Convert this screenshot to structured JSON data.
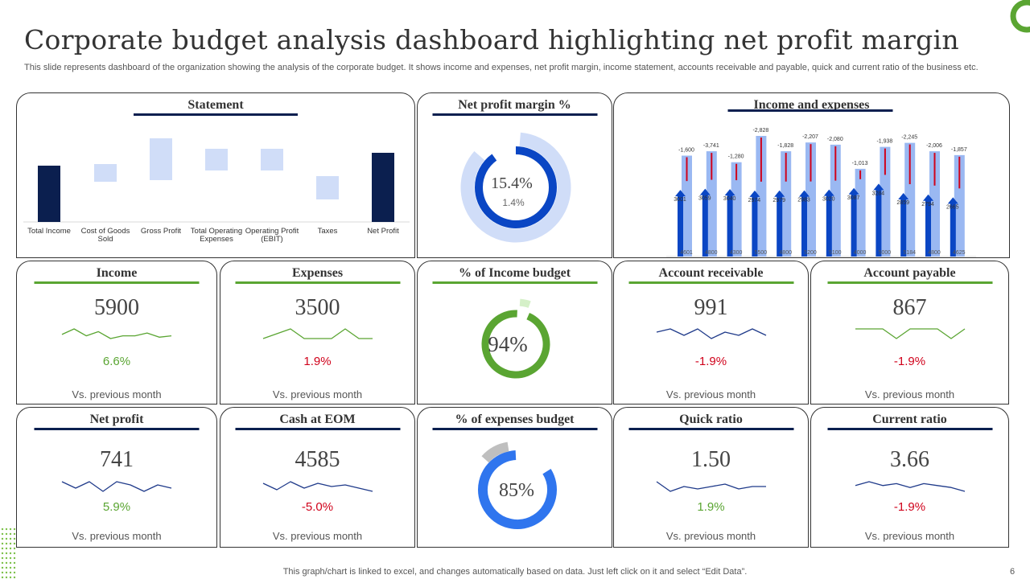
{
  "title": "Corporate budget analysis dashboard highlighting net profit margin",
  "subtitle": "This slide represents dashboard of the organization showing the analysis of the corporate budget. It shows income and expenses, net profit margin, income statement, accounts receivable and payable, quick and current ratio of the business etc.",
  "colors": {
    "navy": "#0b1f4f",
    "green": "#5aa532",
    "light_blue": "#d0ddf8",
    "blue": "#0a46c4",
    "red": "#d0021b",
    "gray": "#bfbfbf"
  },
  "statement": {
    "title": "Statement",
    "chart_data": {
      "type": "bar",
      "categories": [
        "Total Income",
        "Cost of Goods Sold",
        "Gross Profit",
        "Total Operating Expenses",
        "Operating Profit (EBIT)",
        "Taxes",
        "Net Profit"
      ],
      "ranges": [
        [
          0,
          70
        ],
        [
          50,
          72
        ],
        [
          52,
          104
        ],
        [
          64,
          91
        ],
        [
          64,
          91
        ],
        [
          28,
          57
        ],
        [
          0,
          86
        ]
      ],
      "kinds": [
        "total",
        "step",
        "step",
        "step",
        "step",
        "step",
        "total"
      ]
    }
  },
  "net_profit_margin": {
    "title": "Net profit margin %",
    "value": "15.4%",
    "sub_value": "1.4%",
    "outer_fraction": 0.85,
    "inner_fraction": 0.9
  },
  "income_expenses": {
    "title": "Income and expenses",
    "chart_data": {
      "type": "bar",
      "totals": [
        4601,
        4800,
        4300,
        5500,
        4800,
        5200,
        5100,
        4000,
        5000,
        5184,
        4800,
        4625
      ],
      "income": [
        3001,
        3059,
        3040,
        2974,
        2979,
        2983,
        3020,
        3087,
        3284,
        2859,
        2794,
        2665
      ],
      "expenses": [
        "-1,600",
        "-3,741",
        "-1,280",
        "-2,828",
        "-1,828",
        "-2,207",
        "-2,080",
        "-1,013",
        "-1,938",
        "-2,245",
        "-2,006",
        "-1,857"
      ]
    }
  },
  "income": {
    "title": "Income",
    "value": "5900",
    "pct": "6.6%",
    "trend": "up",
    "vs": "Vs. previous  month",
    "spark": [
      5,
      9,
      4,
      7,
      2,
      4,
      4,
      6,
      3,
      4
    ],
    "spark_color": "#5aa532"
  },
  "expenses": {
    "title": "Expenses",
    "value": "3500",
    "pct": "1.9%",
    "trend": "down",
    "vs": "Vs. previous  month",
    "spark": [
      4,
      5,
      6,
      4,
      4,
      4,
      6,
      4,
      4
    ],
    "spark_color": "#5aa532"
  },
  "income_budget": {
    "title": "% of Income budget",
    "value": "94%",
    "fraction": 0.94
  },
  "account_receivable": {
    "title": "Account receivable",
    "value": "991",
    "pct": "-1.9%",
    "trend": "down",
    "vs": "Vs. previous  month",
    "spark": [
      5,
      6,
      4,
      6,
      3,
      5,
      4,
      6,
      4
    ],
    "spark_color": "#1f3a8a"
  },
  "account_payable": {
    "title": "Account payable",
    "value": "867",
    "pct": "-1.9%",
    "trend": "down",
    "vs": "Vs. previous  month",
    "spark": [
      5,
      5,
      5,
      4,
      5,
      5,
      5,
      4,
      5
    ],
    "spark_color": "#5aa532"
  },
  "net_profit": {
    "title": "Net profit",
    "value": "741",
    "pct": "5.9%",
    "trend": "up",
    "vs": "Vs. previous  month",
    "spark": [
      6,
      4,
      6,
      3,
      6,
      5,
      3,
      5,
      4
    ],
    "spark_color": "#1f3a8a"
  },
  "cash_eom": {
    "title": "Cash at EOM",
    "value": "4585",
    "pct": "-5.0%",
    "trend": "down",
    "vs": "Vs. previous  month",
    "spark": [
      6,
      2,
      7,
      3,
      6,
      4,
      5,
      3,
      1
    ],
    "spark_color": "#1f3a8a"
  },
  "expenses_budget": {
    "title": "% of expenses budget",
    "value": "85%",
    "fraction": 0.85
  },
  "quick_ratio": {
    "title": "Quick ratio",
    "value": "1.50",
    "pct": "1.9%",
    "trend": "up",
    "vs": "Vs. previous  month",
    "spark": [
      6,
      2,
      4,
      3,
      4,
      5,
      3,
      4,
      4
    ],
    "spark_color": "#1f3a8a"
  },
  "current_ratio": {
    "title": "Current ratio",
    "value": "3.66",
    "pct": "-1.9%",
    "trend": "down",
    "vs": "Vs. previous  month",
    "spark": [
      4,
      6,
      4,
      5,
      3,
      5,
      4,
      3,
      1
    ],
    "spark_color": "#1f3a8a"
  },
  "footer": "This graph/chart is linked to excel,  and changes automatically based on data. Just left click on it and select “Edit Data”.",
  "page_number": "6"
}
